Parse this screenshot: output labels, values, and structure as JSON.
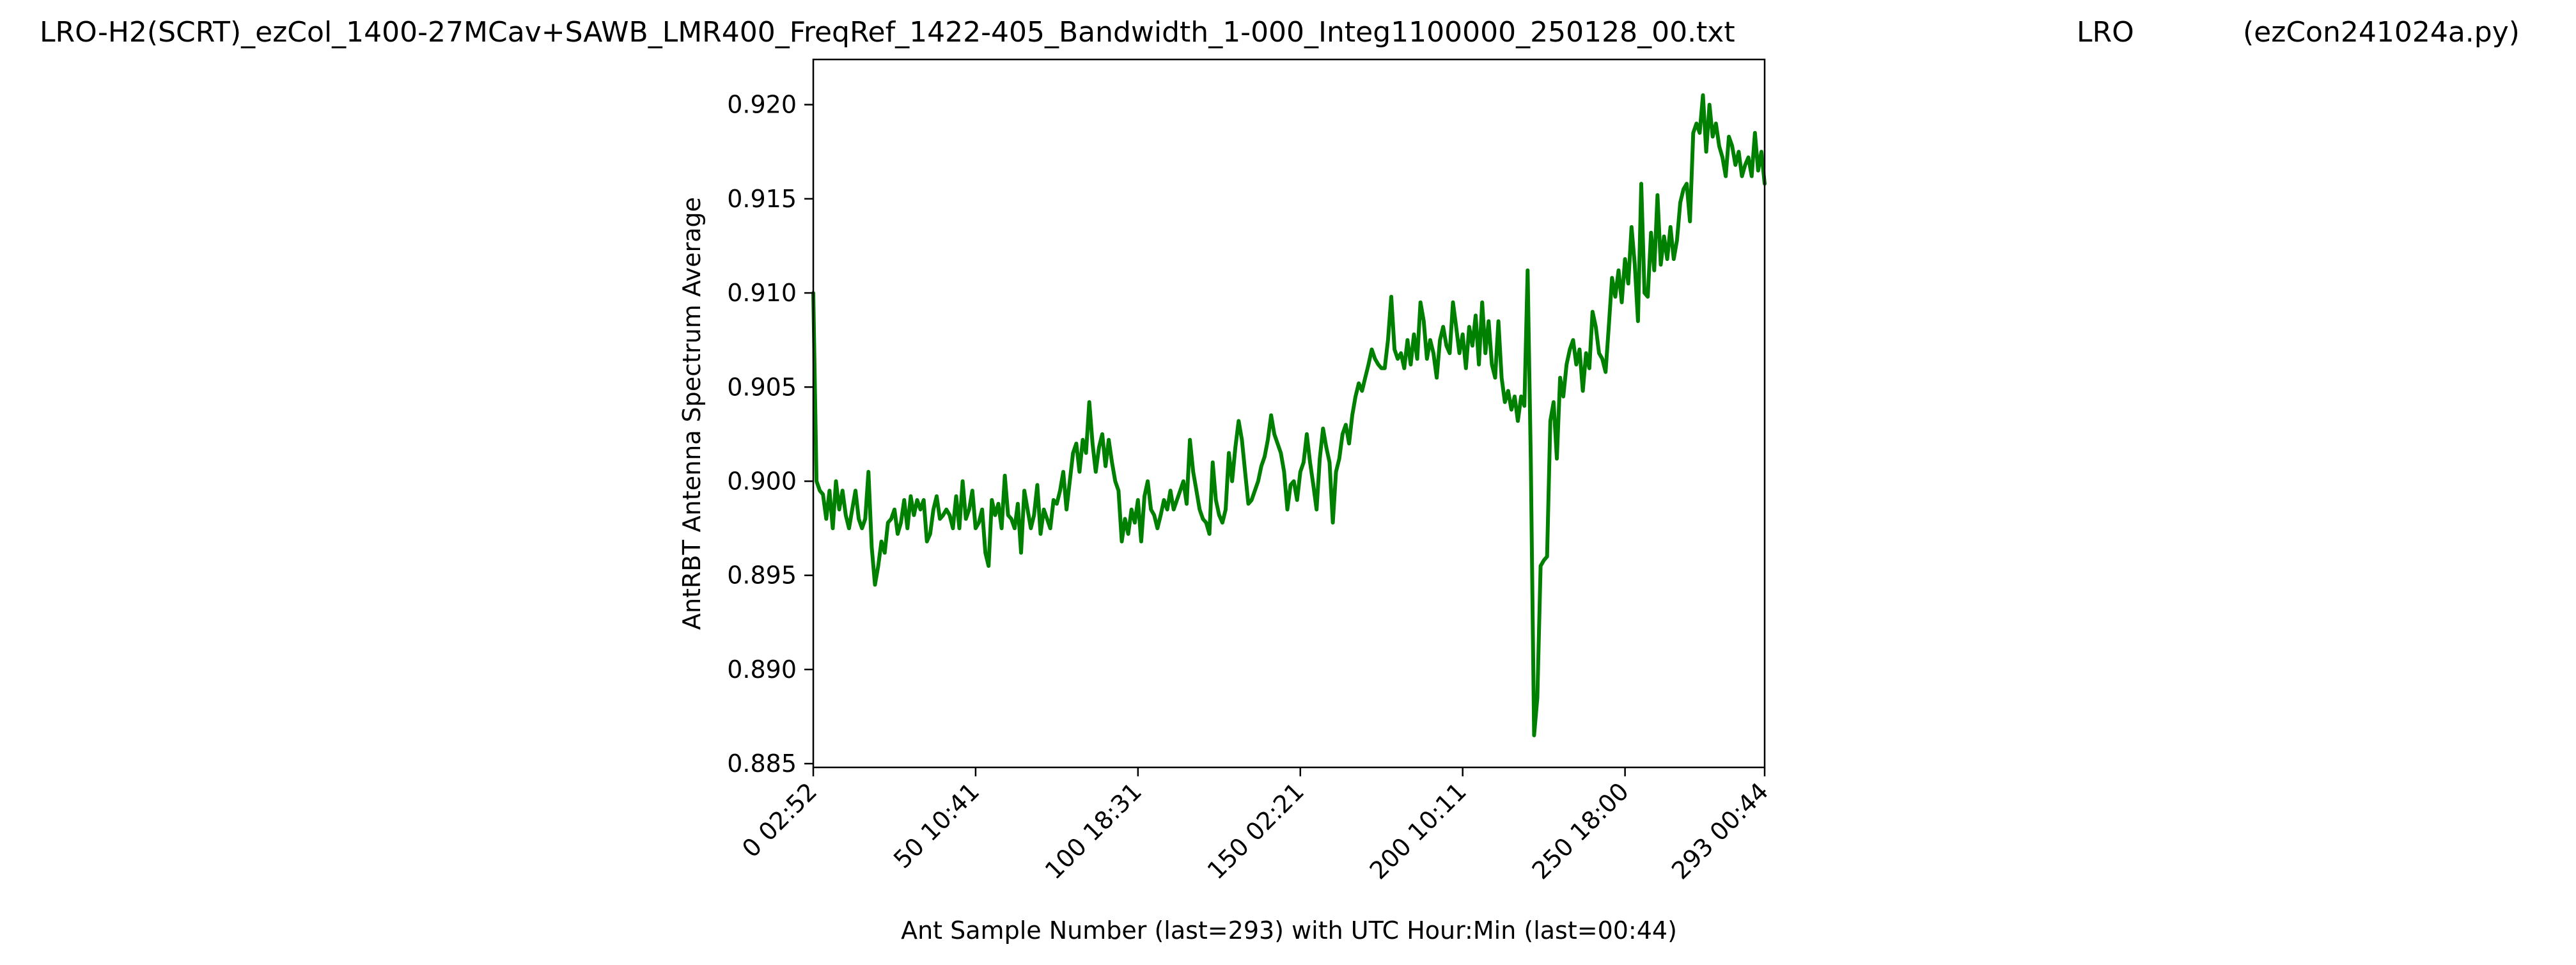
{
  "figure": {
    "title_left": "LRO-H2(SCRT)_ezCol_1400-27MCav+SAWB_LMR400_FreqRef_1422-405_Bandwidth_1-000_Integ1100000_250128_00.txt",
    "title_mid": "LRO",
    "title_right": "(ezCon241024a.py)"
  },
  "chart_data": {
    "type": "line",
    "title": "LRO-H2(SCRT)_ezCol_1400-27MCav+SAWB_LMR400_FreqRef_1422-405_Bandwidth_1-000_Integ1100000_250128_00.txt",
    "xlabel": "Ant Sample Number (last=293) with UTC Hour:Min (last=00:44)",
    "ylabel": "AntRBT Antenna Spectrum Average",
    "xlim": [
      0,
      293
    ],
    "ylim": [
      0.8848,
      0.9224
    ],
    "grid": false,
    "x_ticks": [
      0,
      50,
      100,
      150,
      200,
      250,
      293
    ],
    "x_tick_labels": [
      "0  02:52",
      "50  10:41",
      "100  18:31",
      "150  02:21",
      "200  10:11",
      "250  18:00",
      "293  00:44"
    ],
    "y_ticks": [
      0.885,
      0.89,
      0.895,
      0.9,
      0.905,
      0.91,
      0.915,
      0.92
    ],
    "y_tick_labels": [
      "0.885",
      "0.890",
      "0.895",
      "0.900",
      "0.905",
      "0.910",
      "0.915",
      "0.920"
    ],
    "series": [
      {
        "color": "#008000",
        "points": [
          [
            0,
            0.91
          ],
          [
            1,
            0.9
          ],
          [
            2,
            0.8995
          ],
          [
            3,
            0.8993
          ],
          [
            4,
            0.898
          ],
          [
            5,
            0.8995
          ],
          [
            6,
            0.8975
          ],
          [
            7,
            0.9
          ],
          [
            8,
            0.8985
          ],
          [
            9,
            0.8995
          ],
          [
            10,
            0.8982
          ],
          [
            11,
            0.8975
          ],
          [
            12,
            0.8985
          ],
          [
            13,
            0.8995
          ],
          [
            14,
            0.898
          ],
          [
            15,
            0.8975
          ],
          [
            16,
            0.898
          ],
          [
            17,
            0.9005
          ],
          [
            18,
            0.8965
          ],
          [
            19,
            0.8945
          ],
          [
            20,
            0.8955
          ],
          [
            21,
            0.8968
          ],
          [
            22,
            0.8962
          ],
          [
            23,
            0.8978
          ],
          [
            24,
            0.898
          ],
          [
            25,
            0.8985
          ],
          [
            26,
            0.8972
          ],
          [
            27,
            0.8978
          ],
          [
            28,
            0.899
          ],
          [
            29,
            0.8975
          ],
          [
            30,
            0.8992
          ],
          [
            31,
            0.8982
          ],
          [
            32,
            0.899
          ],
          [
            33,
            0.8985
          ],
          [
            34,
            0.899
          ],
          [
            35,
            0.8968
          ],
          [
            36,
            0.8972
          ],
          [
            37,
            0.8985
          ],
          [
            38,
            0.8992
          ],
          [
            39,
            0.898
          ],
          [
            40,
            0.8982
          ],
          [
            41,
            0.8985
          ],
          [
            42,
            0.8982
          ],
          [
            43,
            0.8975
          ],
          [
            44,
            0.8992
          ],
          [
            45,
            0.8975
          ],
          [
            46,
            0.9
          ],
          [
            47,
            0.898
          ],
          [
            48,
            0.8985
          ],
          [
            49,
            0.8995
          ],
          [
            50,
            0.8975
          ],
          [
            51,
            0.8978
          ],
          [
            52,
            0.8985
          ],
          [
            53,
            0.8962
          ],
          [
            54,
            0.8955
          ],
          [
            55,
            0.899
          ],
          [
            56,
            0.8982
          ],
          [
            57,
            0.8988
          ],
          [
            58,
            0.8975
          ],
          [
            59,
            0.9003
          ],
          [
            60,
            0.8982
          ],
          [
            61,
            0.898
          ],
          [
            62,
            0.8975
          ],
          [
            63,
            0.8988
          ],
          [
            64,
            0.8962
          ],
          [
            65,
            0.8995
          ],
          [
            66,
            0.8985
          ],
          [
            67,
            0.8975
          ],
          [
            68,
            0.8982
          ],
          [
            69,
            0.8998
          ],
          [
            70,
            0.8972
          ],
          [
            71,
            0.8985
          ],
          [
            72,
            0.898
          ],
          [
            73,
            0.8975
          ],
          [
            74,
            0.899
          ],
          [
            75,
            0.8988
          ],
          [
            76,
            0.8995
          ],
          [
            77,
            0.9005
          ],
          [
            78,
            0.8985
          ],
          [
            79,
            0.9
          ],
          [
            80,
            0.9015
          ],
          [
            81,
            0.902
          ],
          [
            82,
            0.9005
          ],
          [
            83,
            0.9022
          ],
          [
            84,
            0.9015
          ],
          [
            85,
            0.9042
          ],
          [
            86,
            0.902
          ],
          [
            87,
            0.9005
          ],
          [
            88,
            0.9018
          ],
          [
            89,
            0.9025
          ],
          [
            90,
            0.9008
          ],
          [
            91,
            0.9022
          ],
          [
            92,
            0.901
          ],
          [
            93,
            0.9
          ],
          [
            94,
            0.8995
          ],
          [
            95,
            0.8968
          ],
          [
            96,
            0.898
          ],
          [
            97,
            0.8972
          ],
          [
            98,
            0.8985
          ],
          [
            99,
            0.8978
          ],
          [
            100,
            0.899
          ],
          [
            101,
            0.8968
          ],
          [
            102,
            0.8992
          ],
          [
            103,
            0.9
          ],
          [
            104,
            0.8985
          ],
          [
            105,
            0.8982
          ],
          [
            106,
            0.8975
          ],
          [
            107,
            0.8982
          ],
          [
            108,
            0.899
          ],
          [
            109,
            0.8985
          ],
          [
            110,
            0.8995
          ],
          [
            111,
            0.8985
          ],
          [
            112,
            0.899
          ],
          [
            113,
            0.8995
          ],
          [
            114,
            0.9
          ],
          [
            115,
            0.8988
          ],
          [
            116,
            0.9022
          ],
          [
            117,
            0.9005
          ],
          [
            118,
            0.8995
          ],
          [
            119,
            0.8985
          ],
          [
            120,
            0.898
          ],
          [
            121,
            0.8978
          ],
          [
            122,
            0.8972
          ],
          [
            123,
            0.901
          ],
          [
            124,
            0.899
          ],
          [
            125,
            0.8982
          ],
          [
            126,
            0.8978
          ],
          [
            127,
            0.8985
          ],
          [
            128,
            0.9015
          ],
          [
            129,
            0.9
          ],
          [
            130,
            0.9018
          ],
          [
            131,
            0.9032
          ],
          [
            132,
            0.9022
          ],
          [
            133,
            0.9005
          ],
          [
            134,
            0.8988
          ],
          [
            135,
            0.899
          ],
          [
            136,
            0.8995
          ],
          [
            137,
            0.9
          ],
          [
            138,
            0.9008
          ],
          [
            139,
            0.9013
          ],
          [
            140,
            0.9022
          ],
          [
            141,
            0.9035
          ],
          [
            142,
            0.9025
          ],
          [
            143,
            0.902
          ],
          [
            144,
            0.9015
          ],
          [
            145,
            0.9005
          ],
          [
            146,
            0.8985
          ],
          [
            147,
            0.8998
          ],
          [
            148,
            0.9
          ],
          [
            149,
            0.899
          ],
          [
            150,
            0.9005
          ],
          [
            151,
            0.901
          ],
          [
            152,
            0.9025
          ],
          [
            153,
            0.901
          ],
          [
            154,
            0.8998
          ],
          [
            155,
            0.8985
          ],
          [
            156,
            0.9012
          ],
          [
            157,
            0.9028
          ],
          [
            158,
            0.9018
          ],
          [
            159,
            0.901
          ],
          [
            160,
            0.8978
          ],
          [
            161,
            0.9005
          ],
          [
            162,
            0.9012
          ],
          [
            163,
            0.9025
          ],
          [
            164,
            0.903
          ],
          [
            165,
            0.902
          ],
          [
            166,
            0.9035
          ],
          [
            167,
            0.9045
          ],
          [
            168,
            0.9052
          ],
          [
            169,
            0.9048
          ],
          [
            170,
            0.9055
          ],
          [
            171,
            0.9062
          ],
          [
            172,
            0.907
          ],
          [
            173,
            0.9065
          ],
          [
            174,
            0.9062
          ],
          [
            175,
            0.906
          ],
          [
            176,
            0.906
          ],
          [
            177,
            0.9075
          ],
          [
            178,
            0.9098
          ],
          [
            179,
            0.907
          ],
          [
            180,
            0.9065
          ],
          [
            181,
            0.9068
          ],
          [
            182,
            0.906
          ],
          [
            183,
            0.9075
          ],
          [
            184,
            0.9062
          ],
          [
            185,
            0.9078
          ],
          [
            186,
            0.9065
          ],
          [
            187,
            0.9095
          ],
          [
            188,
            0.9085
          ],
          [
            189,
            0.9065
          ],
          [
            190,
            0.9075
          ],
          [
            191,
            0.9068
          ],
          [
            192,
            0.9055
          ],
          [
            193,
            0.9075
          ],
          [
            194,
            0.9082
          ],
          [
            195,
            0.9072
          ],
          [
            196,
            0.9068
          ],
          [
            197,
            0.9095
          ],
          [
            198,
            0.9082
          ],
          [
            199,
            0.9068
          ],
          [
            200,
            0.9078
          ],
          [
            201,
            0.906
          ],
          [
            202,
            0.9082
          ],
          [
            203,
            0.9072
          ],
          [
            204,
            0.9088
          ],
          [
            205,
            0.9062
          ],
          [
            206,
            0.9095
          ],
          [
            207,
            0.9068
          ],
          [
            208,
            0.9085
          ],
          [
            209,
            0.9062
          ],
          [
            210,
            0.9055
          ],
          [
            211,
            0.9085
          ],
          [
            212,
            0.9055
          ],
          [
            213,
            0.9042
          ],
          [
            214,
            0.9048
          ],
          [
            215,
            0.9038
          ],
          [
            216,
            0.9045
          ],
          [
            217,
            0.9032
          ],
          [
            218,
            0.9045
          ],
          [
            219,
            0.904
          ],
          [
            220,
            0.9112
          ],
          [
            221,
            0.901
          ],
          [
            222,
            0.8865
          ],
          [
            223,
            0.8885
          ],
          [
            224,
            0.8955
          ],
          [
            225,
            0.8958
          ],
          [
            226,
            0.896
          ],
          [
            227,
            0.9032
          ],
          [
            228,
            0.9042
          ],
          [
            229,
            0.9012
          ],
          [
            230,
            0.9055
          ],
          [
            231,
            0.9045
          ],
          [
            232,
            0.9062
          ],
          [
            233,
            0.907
          ],
          [
            234,
            0.9075
          ],
          [
            235,
            0.9062
          ],
          [
            236,
            0.907
          ],
          [
            237,
            0.9048
          ],
          [
            238,
            0.9068
          ],
          [
            239,
            0.906
          ],
          [
            240,
            0.909
          ],
          [
            241,
            0.9082
          ],
          [
            242,
            0.9068
          ],
          [
            243,
            0.9065
          ],
          [
            244,
            0.9058
          ],
          [
            245,
            0.9082
          ],
          [
            246,
            0.9108
          ],
          [
            247,
            0.9098
          ],
          [
            248,
            0.9112
          ],
          [
            249,
            0.9095
          ],
          [
            250,
            0.9118
          ],
          [
            251,
            0.9105
          ],
          [
            252,
            0.9135
          ],
          [
            253,
            0.9115
          ],
          [
            254,
            0.9085
          ],
          [
            255,
            0.9158
          ],
          [
            256,
            0.91
          ],
          [
            257,
            0.9098
          ],
          [
            258,
            0.9132
          ],
          [
            259,
            0.9112
          ],
          [
            260,
            0.9152
          ],
          [
            261,
            0.9115
          ],
          [
            262,
            0.913
          ],
          [
            263,
            0.9118
          ],
          [
            264,
            0.9135
          ],
          [
            265,
            0.9118
          ],
          [
            266,
            0.9128
          ],
          [
            267,
            0.9148
          ],
          [
            268,
            0.9155
          ],
          [
            269,
            0.9158
          ],
          [
            270,
            0.9138
          ],
          [
            271,
            0.9185
          ],
          [
            272,
            0.919
          ],
          [
            273,
            0.9185
          ],
          [
            274,
            0.9205
          ],
          [
            275,
            0.9175
          ],
          [
            276,
            0.92
          ],
          [
            277,
            0.9183
          ],
          [
            278,
            0.919
          ],
          [
            279,
            0.9178
          ],
          [
            280,
            0.9172
          ],
          [
            281,
            0.9162
          ],
          [
            282,
            0.9183
          ],
          [
            283,
            0.9178
          ],
          [
            284,
            0.9168
          ],
          [
            285,
            0.9175
          ],
          [
            286,
            0.9162
          ],
          [
            287,
            0.9168
          ],
          [
            288,
            0.9172
          ],
          [
            289,
            0.9162
          ],
          [
            290,
            0.9185
          ],
          [
            291,
            0.9165
          ],
          [
            292,
            0.9175
          ],
          [
            293,
            0.9158
          ]
        ]
      }
    ]
  }
}
